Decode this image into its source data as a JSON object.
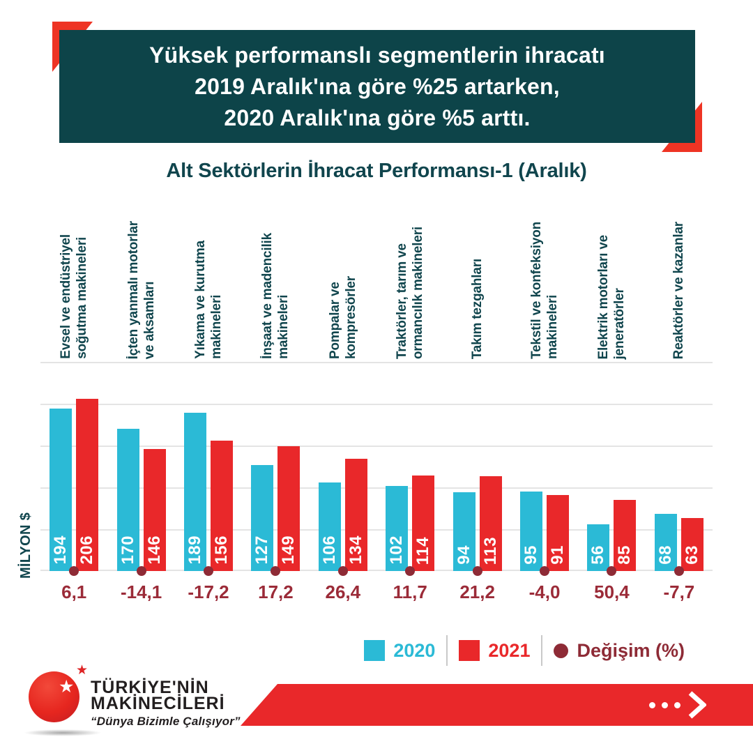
{
  "header": {
    "line1": "Yüksek performanslı segmentlerin ihracatı",
    "line2": "2019 Aralık'ına göre %25 artarken,",
    "line3": "2020 Aralık'ına göre %5 arttı."
  },
  "chart_data": {
    "type": "bar",
    "title": "Alt Sektörlerin İhracat Performansı-1 (Aralık)",
    "categories": [
      "Evsel ve endüstriyel\nsoğutma makineleri",
      "İçten yanmalı motorlar\nve aksamları",
      "Yıkama ve kurutma\nmakineleri",
      "İnşaat ve madencilik\nmakineleri",
      "Pompalar ve\nkompresörler",
      "Traktörler, tarım ve\normancılık makineleri",
      "Takım tezgahları",
      "Tekstil ve konfeksiyon\nmakineleri",
      "Elektrik motorları ve\njeneratörler",
      "Reaktörler ve kazanlar"
    ],
    "series": [
      {
        "name": "2020",
        "color": "#2bbad6",
        "values": [
          194,
          170,
          189,
          127,
          106,
          102,
          94,
          95,
          56,
          68
        ]
      },
      {
        "name": "2021",
        "color": "#e9282a",
        "values": [
          206,
          146,
          156,
          149,
          134,
          114,
          113,
          91,
          85,
          63
        ]
      }
    ],
    "change_percent_labels": [
      "6,1",
      "-14,1",
      "-17,2",
      "17,2",
      "26,4",
      "11,7",
      "21,2",
      "-4,0",
      "50,4",
      "-7,7"
    ],
    "change_color": "#8e2b36",
    "ylabel": "MİLYON $",
    "ylim": [
      0,
      250
    ],
    "grid_step": 50,
    "grid": true,
    "legend_position": "bottom-right",
    "value_labels": "inside-bottom-rotated"
  },
  "legend": {
    "items": [
      {
        "label": "2020",
        "swatch": "square",
        "color": "#2bbad6"
      },
      {
        "label": "2021",
        "swatch": "square",
        "color": "#e9282a"
      },
      {
        "label": "Değişim (%)",
        "swatch": "dot",
        "color": "#8e2b36"
      }
    ]
  },
  "footer": {
    "brand_line1": "TÜRKİYE'NİN",
    "brand_line2": "MAKİNECİLERİ",
    "tagline": "“Dünya Bizimle Çalışıyor”",
    "banner_icons": [
      "ellipsis-dots-icon",
      "chevron-right-icon"
    ]
  },
  "colors": {
    "header_bg": "#0d4449",
    "accent_red": "#ee3424",
    "banner_red": "#e9282a",
    "bar_2020": "#2bbad6",
    "bar_2021": "#e9282a",
    "change_maroon": "#8e2b36",
    "text_teal": "#10454d",
    "gridline": "#e4e4e4",
    "logo_text": "#221e1f"
  }
}
